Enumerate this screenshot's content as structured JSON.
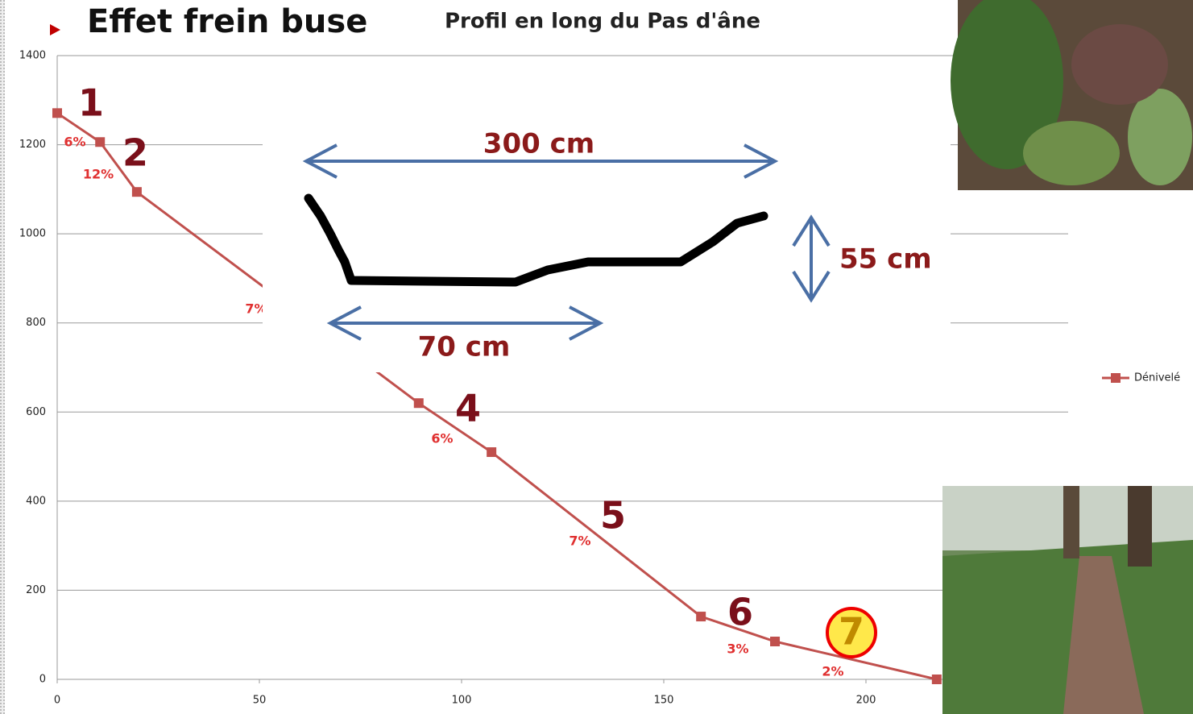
{
  "heading": "Effet frein buse",
  "chart_data": {
    "type": "line",
    "title": "Profil en long du Pas d'âne",
    "x": [
      0,
      10.6,
      19.7,
      89.4,
      107.4,
      159.2,
      177.5,
      217.5
    ],
    "series": [
      {
        "name": "Dénivelé",
        "color": "#c0504d",
        "values": [
          1271,
          1206,
          1094,
          620,
          510,
          141,
          85,
          0
        ]
      }
    ],
    "xlim": [
      0,
      250
    ],
    "ylim": [
      0,
      1400
    ],
    "xticks": [
      0,
      50,
      100,
      150,
      200
    ],
    "yticks": [
      0,
      200,
      400,
      600,
      800,
      1000,
      1200,
      1400
    ],
    "grid": true,
    "legend": "right",
    "section_labels": [
      "1",
      "2",
      "4",
      "5",
      "6",
      "7"
    ],
    "slope_labels": [
      "6%",
      "12%",
      "7%",
      "6%",
      "7%",
      "3%",
      "2%"
    ]
  },
  "overlay": {
    "labels": [
      "300 cm",
      "55 cm",
      "70 cm"
    ]
  }
}
